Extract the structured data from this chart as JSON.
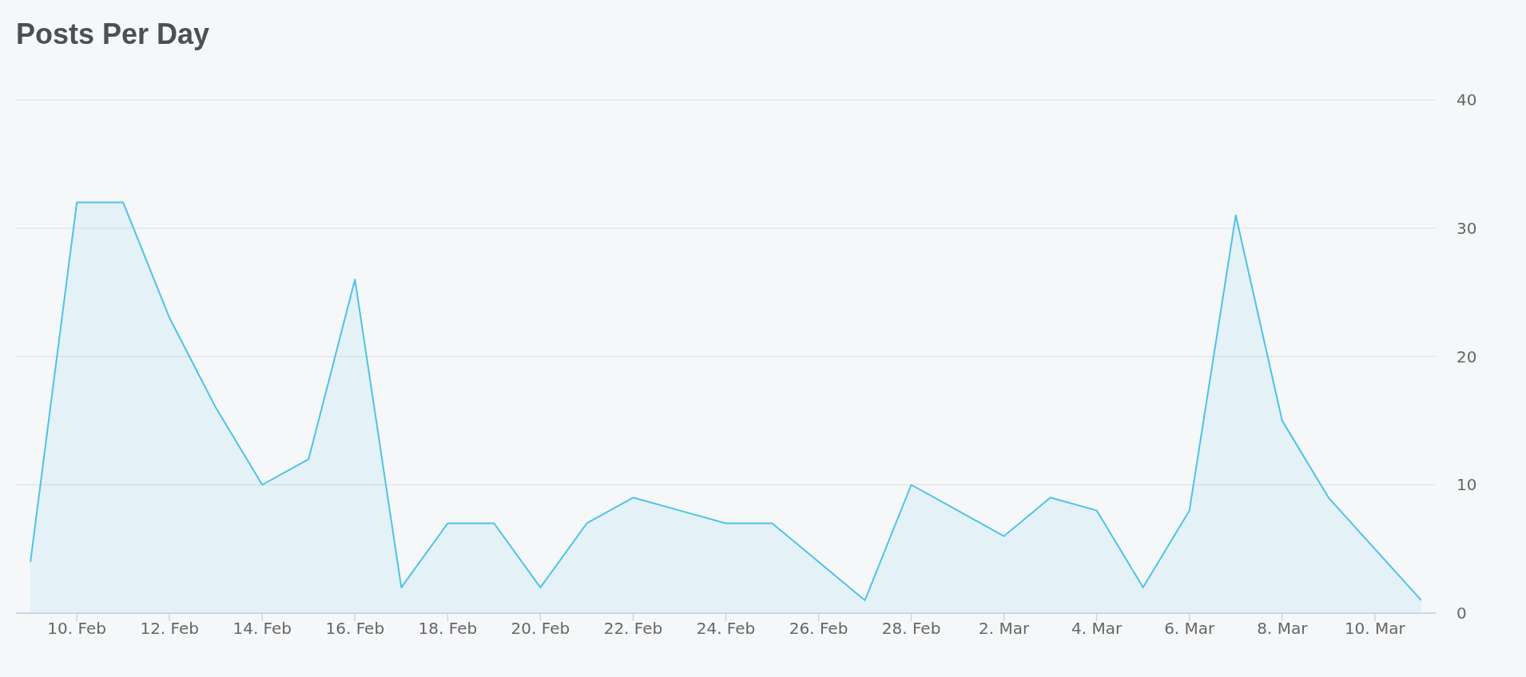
{
  "chart_data": {
    "type": "area",
    "title": "Posts Per Day",
    "x": [
      "--02-09",
      "--02-10",
      "--02-11",
      "--02-12",
      "--02-13",
      "--02-14",
      "--02-15",
      "--02-16",
      "--02-17",
      "--02-18",
      "--02-19",
      "--02-20",
      "--02-21",
      "--02-22",
      "--02-23",
      "--02-24",
      "--02-25",
      "--02-26",
      "--02-27",
      "--02-28",
      "--03-01",
      "--03-02",
      "--03-03",
      "--03-04",
      "--03-05",
      "--03-06",
      "--03-07",
      "--03-08",
      "--03-09",
      "--03-10",
      "--03-11"
    ],
    "values": [
      4,
      32,
      32,
      23,
      16,
      10,
      12,
      26,
      2,
      7,
      7,
      2,
      7,
      9,
      8,
      7,
      7,
      4,
      1,
      10,
      8,
      6,
      9,
      8,
      2,
      8,
      31,
      15,
      9,
      5,
      1
    ],
    "color": "#4dc3e8",
    "xlim": [
      "--02-08T16:30",
      "--03-11T07:30"
    ],
    "xticks": [
      {
        "value": "--02-10",
        "label": "10. Feb"
      },
      {
        "value": "--02-12",
        "label": "12. Feb"
      },
      {
        "value": "--02-14",
        "label": "14. Feb"
      },
      {
        "value": "--02-16",
        "label": "16. Feb"
      },
      {
        "value": "--02-18",
        "label": "18. Feb"
      },
      {
        "value": "--02-20",
        "label": "20. Feb"
      },
      {
        "value": "--02-22",
        "label": "22. Feb"
      },
      {
        "value": "--02-24",
        "label": "24. Feb"
      },
      {
        "value": "--02-26",
        "label": "26. Feb"
      },
      {
        "value": "--02-28",
        "label": "28. Feb"
      },
      {
        "value": "--03-02",
        "label": "2. Mar"
      },
      {
        "value": "--03-04",
        "label": "4. Mar"
      },
      {
        "value": "--03-06",
        "label": "6. Mar"
      },
      {
        "value": "--03-08",
        "label": "8. Mar"
      },
      {
        "value": "--03-10",
        "label": "10. Mar"
      }
    ],
    "ylim": [
      0,
      40
    ],
    "yticks": [
      0,
      10,
      20,
      30,
      40
    ],
    "grid": "y"
  }
}
